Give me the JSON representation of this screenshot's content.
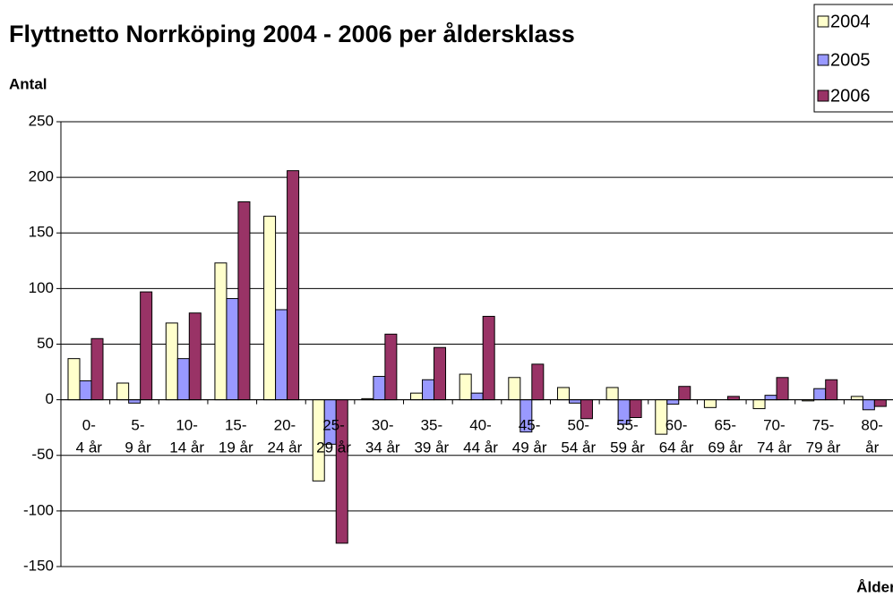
{
  "chart_data": {
    "type": "bar",
    "title": "Flyttnetto Norrköping 2004 - 2006 per åldersklass",
    "y_label": "Antal",
    "x_label": "Ålder",
    "categories": [
      "0-\n4 år",
      "5-\n9 år",
      "10-\n14 år",
      "15-\n19 år",
      "20-\n24 år",
      "25-\n29 år",
      "30-\n34 år",
      "35-\n39 år",
      "40-\n44 år",
      "45-\n49 år",
      "50-\n54 år",
      "55-\n59 år",
      "60-\n64 år",
      "65-\n69 år",
      "70-\n74 år",
      "75-\n79 år",
      "80-\når"
    ],
    "series": [
      {
        "name": "2004",
        "color": "#ffffcc",
        "values": [
          37,
          15,
          69,
          123,
          165,
          -73,
          1,
          6,
          23,
          20,
          11,
          11,
          -31,
          -7,
          -8,
          -1,
          3
        ]
      },
      {
        "name": "2005",
        "color": "#9999ff",
        "values": [
          17,
          -3,
          37,
          91,
          81,
          -40,
          21,
          18,
          6,
          -29,
          -3,
          -22,
          -4,
          0,
          4,
          10,
          -9
        ]
      },
      {
        "name": "2006",
        "color": "#993366",
        "values": [
          55,
          97,
          78,
          178,
          206,
          -129,
          59,
          47,
          75,
          32,
          -17,
          -16,
          12,
          3,
          20,
          18,
          -6
        ]
      }
    ],
    "ylim": [
      -150,
      250
    ],
    "yticks": [
      -150,
      -100,
      -50,
      0,
      50,
      100,
      150,
      200,
      250
    ],
    "grid": true,
    "legend": "top-right"
  }
}
